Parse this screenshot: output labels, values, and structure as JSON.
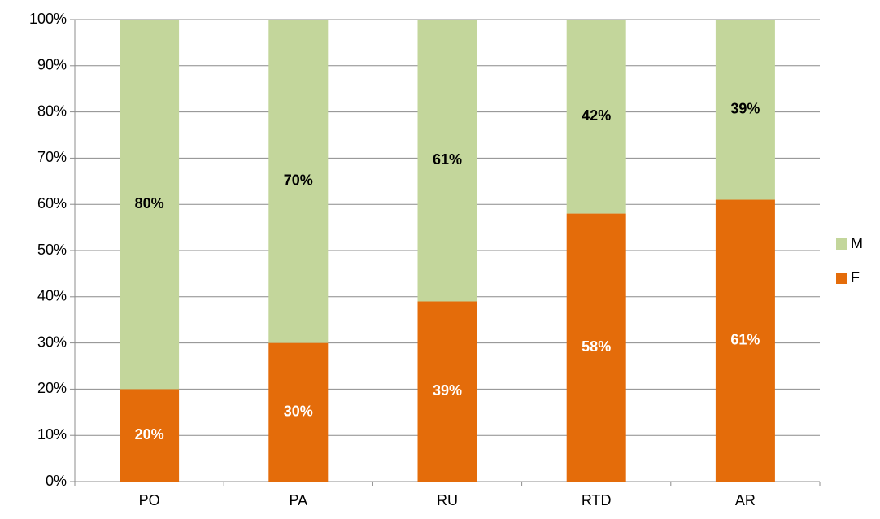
{
  "chart_data": {
    "type": "stacked_bar_100",
    "categories": [
      "PO",
      "PA",
      "RU",
      "RTD",
      "AR"
    ],
    "series": [
      {
        "name": "F",
        "color": "#e46c0a",
        "values": [
          20,
          30,
          39,
          58,
          61
        ],
        "value_labels": [
          "20%",
          "30%",
          "39%",
          "58%",
          "61%"
        ],
        "label_color": "#ffffff"
      },
      {
        "name": "M",
        "color": "#c3d69b",
        "values": [
          80,
          70,
          61,
          42,
          39
        ],
        "value_labels": [
          "80%",
          "70%",
          "61%",
          "42%",
          "39%"
        ],
        "label_color": "#000000"
      }
    ],
    "ylim": [
      0,
      100
    ],
    "yticks": [
      {
        "value": 0,
        "label": "0%"
      },
      {
        "value": 10,
        "label": "10%"
      },
      {
        "value": 20,
        "label": "20%"
      },
      {
        "value": 30,
        "label": "30%"
      },
      {
        "value": 40,
        "label": "40%"
      },
      {
        "value": 50,
        "label": "50%"
      },
      {
        "value": 60,
        "label": "60%"
      },
      {
        "value": 70,
        "label": "70%"
      },
      {
        "value": 80,
        "label": "80%"
      },
      {
        "value": 90,
        "label": "90%"
      },
      {
        "value": 100,
        "label": "100%"
      }
    ],
    "grid": true,
    "legend": "right"
  }
}
